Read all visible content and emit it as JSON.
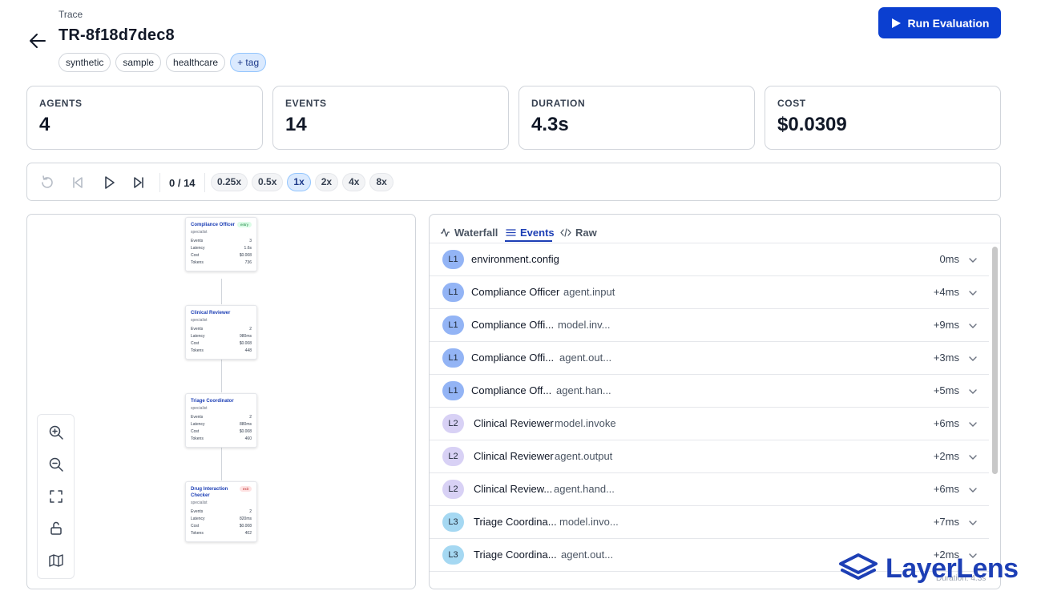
{
  "header": {
    "eyebrow": "Trace",
    "title": "TR-8f18d7dec8",
    "tags": [
      "synthetic",
      "sample",
      "healthcare"
    ],
    "add_tag_label": "+ tag",
    "run_button_label": "Run Evaluation"
  },
  "stats": [
    {
      "label": "AGENTS",
      "value": "4"
    },
    {
      "label": "EVENTS",
      "value": "14"
    },
    {
      "label": "DURATION",
      "value": "4.3s"
    },
    {
      "label": "COST",
      "value": "$0.0309"
    }
  ],
  "playback": {
    "counter": "0 / 14",
    "speeds": [
      "0.25x",
      "0.5x",
      "1x",
      "2x",
      "4x",
      "8x"
    ],
    "active_speed": "1x"
  },
  "graph": {
    "nodes": [
      {
        "name": "Compliance Officer",
        "role": "specialist",
        "badge": "entry",
        "events": "3",
        "latency": "1.6s",
        "cost": "$0.008",
        "tokens": "736"
      },
      {
        "name": "Clinical Reviewer",
        "role": "specialist",
        "badge": "",
        "events": "2",
        "latency": "980ms",
        "cost": "$0.008",
        "tokens": "448"
      },
      {
        "name": "Triage Coordinator",
        "role": "specialist",
        "badge": "",
        "events": "2",
        "latency": "880ms",
        "cost": "$0.008",
        "tokens": "460"
      },
      {
        "name": "Drug Interaction Checker",
        "role": "specialist",
        "badge": "exit",
        "events": "2",
        "latency": "820ms",
        "cost": "$0.008",
        "tokens": "402"
      }
    ],
    "row_labels": {
      "events": "Events",
      "latency": "Latency",
      "cost": "Cost",
      "tokens": "Tokens"
    }
  },
  "events_panel": {
    "tabs": [
      "Waterfall",
      "Events",
      "Raw"
    ],
    "active_tab": "Events",
    "rows": [
      {
        "level": "L1",
        "agent": "",
        "event": "environment.config",
        "time": "0ms"
      },
      {
        "level": "L1",
        "agent": "Compliance Officer",
        "event": "agent.input",
        "time": "+4ms"
      },
      {
        "level": "L1",
        "agent": "Compliance Offi...",
        "event": "model.inv...",
        "time": "+9ms"
      },
      {
        "level": "L1",
        "agent": "Compliance Offi...",
        "event": "agent.out...",
        "time": "+3ms"
      },
      {
        "level": "L1",
        "agent": "Compliance Off...",
        "event": "agent.han...",
        "time": "+5ms"
      },
      {
        "level": "L2",
        "agent": "Clinical Reviewer",
        "event": "model.invoke",
        "time": "+6ms"
      },
      {
        "level": "L2",
        "agent": "Clinical Reviewer",
        "event": "agent.output",
        "time": "+2ms"
      },
      {
        "level": "L2",
        "agent": "Clinical Review...",
        "event": "agent.hand...",
        "time": "+6ms"
      },
      {
        "level": "L3",
        "agent": "Triage Coordina...",
        "event": "model.invo...",
        "time": "+7ms"
      },
      {
        "level": "L3",
        "agent": "Triage Coordina...",
        "event": "agent.out...",
        "time": "+2ms"
      }
    ],
    "footer": "Duration: 4.3s"
  },
  "brand": {
    "name": "LayerLens",
    "accent": "#0b3fd0"
  }
}
